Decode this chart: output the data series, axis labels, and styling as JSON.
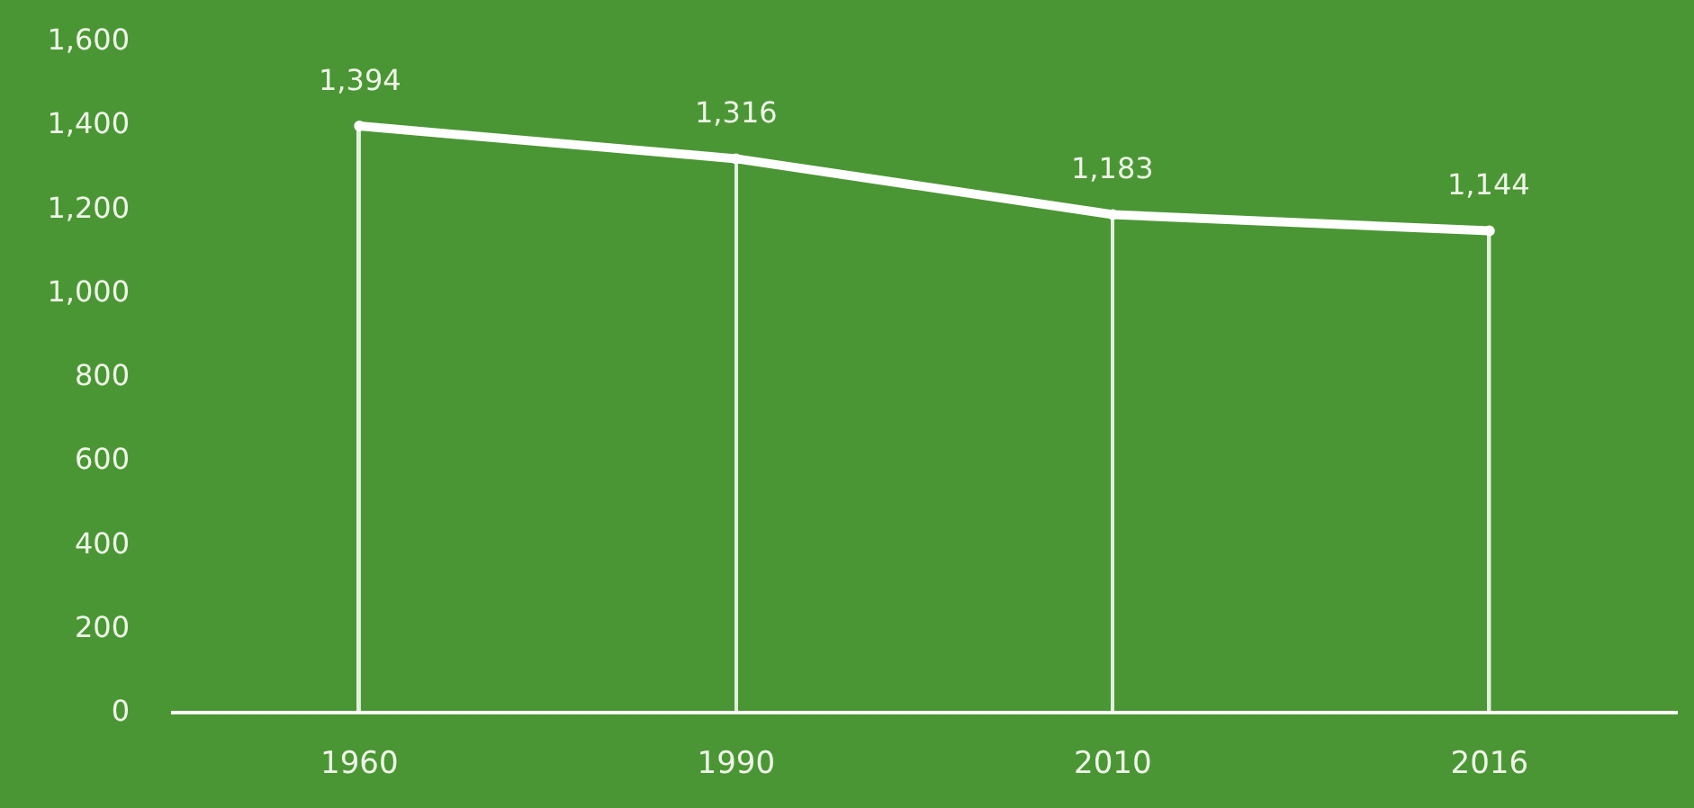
{
  "chart_data": {
    "type": "line",
    "categories": [
      "1960",
      "1990",
      "2010",
      "2016"
    ],
    "series": [
      {
        "color": "#ffffff",
        "values": [
          1394,
          1316,
          1183,
          1144
        ],
        "value_labels": [
          "1,394",
          "1,316",
          "1,183",
          "1,144"
        ]
      },
      {
        "type": "lollipop",
        "color": "#ffffff",
        "marker": "circle",
        "values": [
          1394,
          1316,
          1183,
          1144
        ]
      }
    ],
    "ylim": [
      0,
      1600
    ],
    "yticks": [
      0,
      200,
      400,
      600,
      800,
      {
        "value": 1000,
        "label": "1,000"
      },
      {
        "value": 1200,
        "label": "1,200"
      },
      {
        "value": 1400,
        "label": "1,400"
      },
      {
        "value": 1600,
        "label": "1,600"
      }
    ],
    "grid": false,
    "marker": "none"
  }
}
